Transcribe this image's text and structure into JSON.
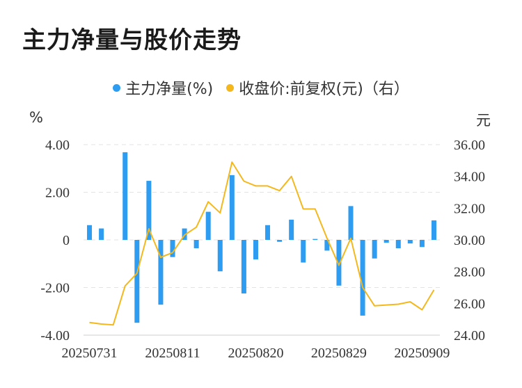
{
  "title": "主力净量与股价走势",
  "legend": {
    "series1": "主力净量(%)",
    "series2": "收盘价:前复权(元)（右）"
  },
  "units": {
    "left": "%",
    "right": "元"
  },
  "colors": {
    "bar": "#2e9cf0",
    "line": "#f4b81c",
    "grid": "#e3e3e3",
    "text": "#333333"
  },
  "chart_data": {
    "type": "bar",
    "title": "主力净量与股价走势",
    "x_tick_labels": [
      "20250731",
      "20250811",
      "20250820",
      "20250829",
      "20250909"
    ],
    "x_tick_indices": [
      0,
      7,
      14,
      21,
      28
    ],
    "left_axis": {
      "unit": "%",
      "ylim": [
        -4,
        4
      ],
      "ticks": [
        "-4.00",
        "-2.00",
        "0",
        "2.00",
        "4.00"
      ]
    },
    "right_axis": {
      "unit": "元",
      "ylim": [
        24,
        36
      ],
      "ticks": [
        "24.00",
        "26.00",
        "28.00",
        "30.00",
        "32.00",
        "34.00",
        "36.00"
      ]
    },
    "grid": true,
    "legend_position": "top",
    "series": [
      {
        "name": "主力净量(%)",
        "type": "bar",
        "axis": "left",
        "values": [
          0.62,
          0.48,
          0.0,
          3.68,
          -3.48,
          2.48,
          -2.72,
          -0.72,
          0.48,
          -0.35,
          1.18,
          -1.32,
          2.72,
          -2.25,
          -0.82,
          0.62,
          -0.08,
          0.85,
          -0.95,
          0.04,
          -0.45,
          -1.92,
          1.42,
          -3.18,
          -0.78,
          -0.12,
          -0.35,
          -0.15,
          -0.3,
          0.82
        ]
      },
      {
        "name": "收盘价:前复权(元)（右）",
        "type": "line",
        "axis": "right",
        "values": [
          24.8,
          24.7,
          24.65,
          27.1,
          27.9,
          30.7,
          28.9,
          29.2,
          30.3,
          30.8,
          32.4,
          31.7,
          34.9,
          33.7,
          33.4,
          33.4,
          33.1,
          34.0,
          31.95,
          31.95,
          30.1,
          28.4,
          30.1,
          27.0,
          25.85,
          25.9,
          25.95,
          26.1,
          25.6,
          26.85
        ]
      }
    ]
  }
}
